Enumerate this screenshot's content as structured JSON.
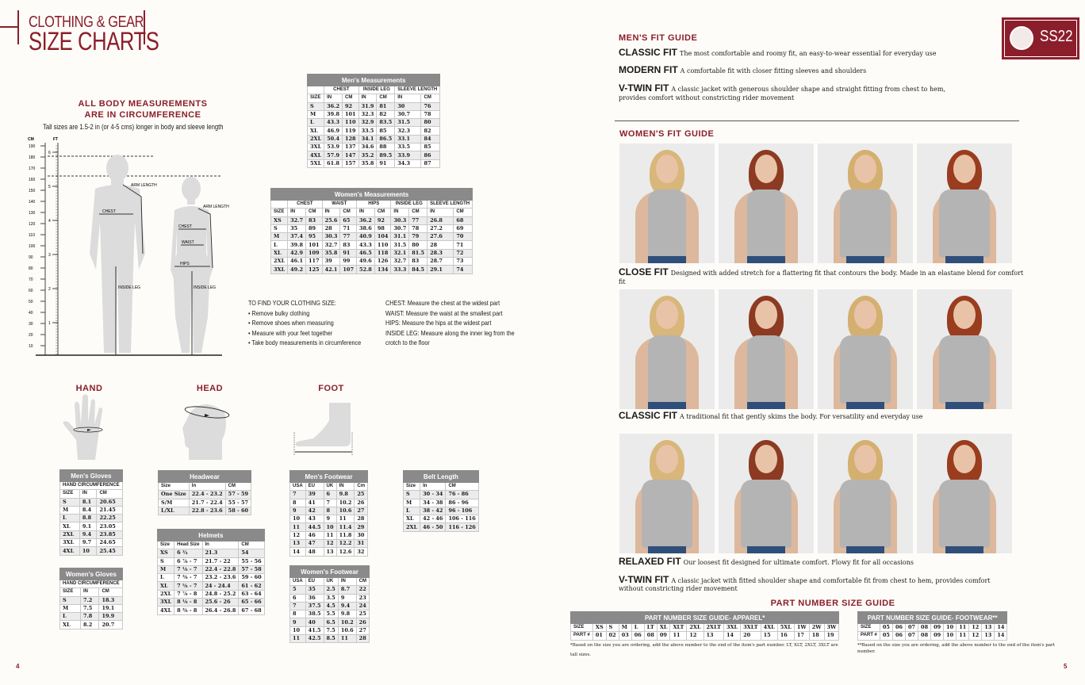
{
  "left_page": {
    "title_line1": "CLOTHING & GEAR",
    "title_line2": "SIZE CHARTS",
    "body_heading_1": "ALL BODY MEASUREMENTS",
    "body_heading_2": "ARE IN CIRCUMFERENCE",
    "tall_note": "Tall sizes are 1.5-2 in (or 4-5 cms) longer in body and sleeve length",
    "ruler": {
      "cm_label": "CM",
      "ft_label": "FT",
      "cm_ticks": [
        "190",
        "180",
        "170",
        "160",
        "150",
        "140",
        "130",
        "120",
        "110",
        "100",
        "90",
        "80",
        "70",
        "60",
        "50",
        "40",
        "30",
        "20",
        "10"
      ],
      "ft_ticks": [
        "6",
        "5",
        "4",
        "3",
        "2",
        "1"
      ]
    },
    "diagram_labels": {
      "men_arm": "ARM LENGTH",
      "men_chest": "CHEST",
      "men_leg": "INSIDE LEG",
      "women_arm": "ARM LENGTH",
      "women_chest": "CHEST",
      "women_waist": "WAIST",
      "women_hips": "HIPS",
      "women_leg": "INSIDE LEG"
    },
    "instructions": {
      "heading": "TO FIND YOUR CLOTHING SIZE:",
      "bullets": [
        "• Remove bulky clothing",
        "• Remove shoes when measuring",
        "• Measure with your feet together",
        "• Take body measurements in circumference"
      ],
      "definitions": [
        "CHEST: Measure the chest at the widest part",
        "WAIST: Measure the waist at the smallest part",
        "HIPS: Measure the hips at the widest part",
        "INSIDE LEG: Measure along the inner leg from the",
        "crotch to the floor"
      ]
    },
    "hand_label": "HAND",
    "head_label": "HEAD",
    "foot_label": "FOOT",
    "page_number": "4"
  },
  "tables": {
    "mens_measurements": {
      "title": "Men's Measurements",
      "groups": [
        [
          "",
          1
        ],
        [
          "CHEST",
          2
        ],
        [
          "INSIDE LEG",
          2
        ],
        [
          "SLEEVE LENGTH",
          2
        ]
      ],
      "columns": [
        "SIZE",
        "IN",
        "CM",
        "IN",
        "CM",
        "IN",
        "CM"
      ],
      "rows": [
        [
          "S",
          "36.2",
          "92",
          "31.9",
          "81",
          "30",
          "76"
        ],
        [
          "M",
          "39.8",
          "101",
          "32.3",
          "82",
          "30.7",
          "78"
        ],
        [
          "L",
          "43.3",
          "110",
          "32.9",
          "83.5",
          "31.5",
          "80"
        ],
        [
          "XL",
          "46.9",
          "119",
          "33.5",
          "85",
          "32.3",
          "82"
        ],
        [
          "2XL",
          "50.4",
          "128",
          "34.1",
          "86.5",
          "33.1",
          "84"
        ],
        [
          "3XL",
          "53.9",
          "137",
          "34.6",
          "88",
          "33.5",
          "85"
        ],
        [
          "4XL",
          "57.9",
          "147",
          "35.2",
          "89.5",
          "33.9",
          "86"
        ],
        [
          "5XL",
          "61.8",
          "157",
          "35.8",
          "91",
          "34.3",
          "87"
        ]
      ]
    },
    "womens_measurements": {
      "title": "Women's Measurements",
      "groups": [
        [
          "",
          1
        ],
        [
          "CHEST",
          2
        ],
        [
          "WAIST",
          2
        ],
        [
          "HIPS",
          2
        ],
        [
          "INSIDE LEG",
          2
        ],
        [
          "SLEEVE LENGTH",
          2
        ]
      ],
      "columns": [
        "SIZE",
        "IN",
        "CM",
        "IN",
        "CM",
        "IN",
        "CM",
        "IN",
        "CM",
        "IN",
        "CM"
      ],
      "rows": [
        [
          "XS",
          "32.7",
          "83",
          "25.6",
          "65",
          "36.2",
          "92",
          "30.3",
          "77",
          "26.8",
          "68"
        ],
        [
          "S",
          "35",
          "89",
          "28",
          "71",
          "38.6",
          "98",
          "30.7",
          "78",
          "27.2",
          "69"
        ],
        [
          "M",
          "37.4",
          "95",
          "30.3",
          "77",
          "40.9",
          "104",
          "31.1",
          "79",
          "27.6",
          "70"
        ],
        [
          "L",
          "39.8",
          "101",
          "32.7",
          "83",
          "43.3",
          "110",
          "31.5",
          "80",
          "28",
          "71"
        ],
        [
          "XL",
          "42.9",
          "109",
          "35.8",
          "91",
          "46.5",
          "118",
          "32.1",
          "81.5",
          "28.3",
          "72"
        ],
        [
          "2XL",
          "46.1",
          "117",
          "39",
          "99",
          "49.6",
          "126",
          "32.7",
          "83",
          "28.7",
          "73"
        ],
        [
          "3XL",
          "49.2",
          "125",
          "42.1",
          "107",
          "52.8",
          "134",
          "33.3",
          "84.5",
          "29.1",
          "74"
        ]
      ]
    },
    "mens_gloves": {
      "title": "Men's Gloves",
      "groups": [
        [
          "HAND CIRCUMFERENCE",
          3
        ]
      ],
      "columns": [
        "SIZE",
        "IN",
        "CM"
      ],
      "rows": [
        [
          "S",
          "8.1",
          "20.65"
        ],
        [
          "M",
          "8.4",
          "21.45"
        ],
        [
          "L",
          "8.8",
          "22.25"
        ],
        [
          "XL",
          "9.1",
          "23.05"
        ],
        [
          "2XL",
          "9.4",
          "23.85"
        ],
        [
          "3XL",
          "9.7",
          "24.65"
        ],
        [
          "4XL",
          "10",
          "25.45"
        ]
      ]
    },
    "womens_gloves": {
      "title": "Women's Gloves",
      "groups": [
        [
          "HAND CIRCUMFERENCE",
          3
        ]
      ],
      "columns": [
        "SIZE",
        "IN",
        "CM"
      ],
      "rows": [
        [
          "S",
          "7.2",
          "18.3"
        ],
        [
          "M",
          "7.5",
          "19.1"
        ],
        [
          "L",
          "7.8",
          "19.9"
        ],
        [
          "XL",
          "8.2",
          "20.7"
        ]
      ]
    },
    "headwear": {
      "title": "Headwear",
      "columns": [
        "Size",
        "In",
        "CM"
      ],
      "rows": [
        [
          "One Size",
          "22.4 - 23.2",
          "57 - 59"
        ],
        [
          "S/M",
          "21.7 - 22.4",
          "55 - 57"
        ],
        [
          "L/XL",
          "22.8 - 23.6",
          "58 - 60"
        ]
      ]
    },
    "helmets": {
      "title": "Helmets",
      "columns": [
        "Size",
        "Head Size",
        "In",
        "CM"
      ],
      "rows": [
        [
          "XS",
          "6 ¾",
          "21.3",
          "54"
        ],
        [
          "S",
          "6 ⅞ - 7",
          "21.7 - 22",
          "55 - 56"
        ],
        [
          "M",
          "7 ⅛ - 7",
          "22.4 - 22.8",
          "57 - 58"
        ],
        [
          "L",
          "7 ⅜ - 7",
          "23.2 - 23.6",
          "59 - 60"
        ],
        [
          "XL",
          "7 ⅝ - 7",
          "24 - 24.4",
          "61 - 62"
        ],
        [
          "2XL",
          "7 ⅞ - 8",
          "24.8 - 25.2",
          "63 - 64"
        ],
        [
          "3XL",
          "8 ⅛ - 8",
          "25.6 - 26",
          "65 - 66"
        ],
        [
          "4XL",
          "8 ⅜ - 8",
          "26.4 - 26.8",
          "67 - 68"
        ]
      ]
    },
    "mens_footwear": {
      "title": "Men's Footwear",
      "columns": [
        "USA",
        "EU",
        "UK",
        "IN",
        "Cm"
      ],
      "rows": [
        [
          "7",
          "39",
          "6",
          "9.8",
          "25"
        ],
        [
          "8",
          "41",
          "7",
          "10.2",
          "26"
        ],
        [
          "9",
          "42",
          "8",
          "10.6",
          "27"
        ],
        [
          "10",
          "43",
          "9",
          "11",
          "28"
        ],
        [
          "11",
          "44.5",
          "10",
          "11.4",
          "29"
        ],
        [
          "12",
          "46",
          "11",
          "11.8",
          "30"
        ],
        [
          "13",
          "47",
          "12",
          "12.2",
          "31"
        ],
        [
          "14",
          "48",
          "13",
          "12.6",
          "32"
        ]
      ]
    },
    "womens_footwear": {
      "title": "Women's Footwear",
      "columns": [
        "USA",
        "EU",
        "UK",
        "IN",
        "CM"
      ],
      "rows": [
        [
          "5",
          "35",
          "2.5",
          "8.7",
          "22"
        ],
        [
          "6",
          "36",
          "3.5",
          "9",
          "23"
        ],
        [
          "7",
          "37.5",
          "4.5",
          "9.4",
          "24"
        ],
        [
          "8",
          "38.5",
          "5.5",
          "9.8",
          "25"
        ],
        [
          "9",
          "40",
          "6.5",
          "10.2",
          "26"
        ],
        [
          "10",
          "41.5",
          "7.5",
          "10.6",
          "27"
        ],
        [
          "11",
          "42.5",
          "8.5",
          "11",
          "28"
        ]
      ]
    },
    "belt_length": {
      "title": "Belt Length",
      "columns": [
        "Size",
        "In",
        "CM"
      ],
      "rows": [
        [
          "S",
          "30 - 34",
          "76 - 86"
        ],
        [
          "M",
          "34 - 38",
          "86 - 96"
        ],
        [
          "L",
          "38 - 42",
          "96 - 106"
        ],
        [
          "XL",
          "42 - 46",
          "106 - 116"
        ],
        [
          "2XL",
          "46 - 50",
          "116 - 126"
        ]
      ]
    },
    "part_apparel": {
      "title": "PART NUMBER SIZE GUIDE- APPAREL*",
      "rows": [
        [
          "SIZE",
          "XS",
          "S",
          "M",
          "L",
          "LT",
          "XL",
          "XLT",
          "2XL",
          "2XLT",
          "3XL",
          "3XLT",
          "4XL",
          "5XL",
          "1W",
          "2W",
          "3W"
        ],
        [
          "PART #",
          "01",
          "02",
          "03",
          "06",
          "08",
          "09",
          "11",
          "12",
          "13",
          "14",
          "20",
          "15",
          "16",
          "17",
          "18",
          "19"
        ]
      ]
    },
    "part_footwear": {
      "title": "PART NUMBER SIZE GUIDE- FOOTWEAR**",
      "rows": [
        [
          "SIZE",
          "05",
          "06",
          "07",
          "08",
          "09",
          "10",
          "11",
          "12",
          "13",
          "14"
        ],
        [
          "PART #",
          "05",
          "06",
          "07",
          "08",
          "09",
          "10",
          "11",
          "12",
          "13",
          "14"
        ]
      ]
    }
  },
  "right_page": {
    "badge": "SS22",
    "mens_fit_heading": "MEN'S FIT GUIDE",
    "mens_fits": [
      {
        "name": "CLASSIC FIT",
        "desc": "The most comfortable and roomy fit, an easy-to-wear essential for everyday use"
      },
      {
        "name": "MODERN FIT",
        "desc": "A comfortable fit with closer fitting sleeves and shoulders"
      },
      {
        "name": "V-TWIN FIT",
        "desc": "A classic jacket with generous shoulder shape and straight fitting from chest to hem, provides comfort without constricting rider movement"
      }
    ],
    "womens_fit_heading": "WOMEN'S FIT GUIDE",
    "womens_fits": [
      {
        "name": "CLOSE FIT",
        "desc": "Designed with added stretch for a flattering fit that contours the body. Made in an elastane blend for comfort fit"
      },
      {
        "name": "CLASSIC FIT",
        "desc": "A traditional fit that gently skims the body. For versatility and everyday use"
      },
      {
        "name": "RELAXED FIT",
        "desc": "Our loosest fit designed for ultimate comfort. Flowy fit for all occasions"
      },
      {
        "name": "V-TWIN FIT",
        "desc": "A classic jacket with fitted shoulder shape and comfortable fit from chest to hem, provides comfort without constricting rider movement"
      }
    ],
    "part_heading": "PART NUMBER SIZE GUIDE",
    "apparel_note": "*Based on the size you are ordering, add the above number to the end of the item's part number. LT, XLT, 2XLT, 3XLT are tall sizes.",
    "footwear_note": "**Based on the size you are ordering, add the above number to the end of the item's part number.",
    "page_number": "5"
  },
  "colors": {
    "accent": "#8b1e2b",
    "table_header": "#8a8a8a",
    "background": "#fdfcf8",
    "shirt": "#b4b4b4",
    "jeans": "#2f4f7a"
  }
}
